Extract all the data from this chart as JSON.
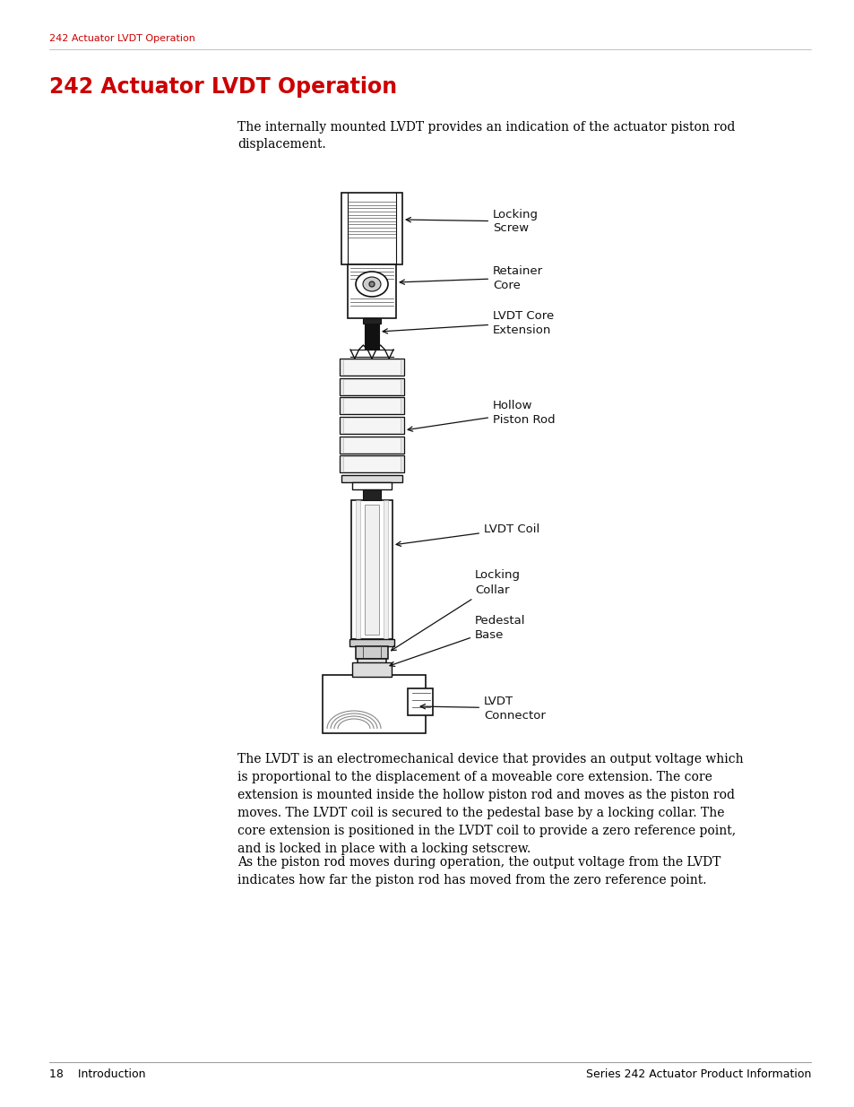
{
  "page_header": "242 Actuator LVDT Operation",
  "header_color": "#cc0000",
  "header_small_fontsize": 8,
  "title": "242 Actuator LVDT Operation",
  "title_color": "#cc0000",
  "title_fontsize": 17,
  "intro_text": "The internally mounted LVDT provides an indication of the actuator piston rod\ndisplacement.",
  "body_text1": "The LVDT is an electromechanical device that provides an output voltage which\nis proportional to the displacement of a moveable core extension. The core\nextension is mounted inside the hollow piston rod and moves as the piston rod\nmoves. The LVDT coil is secured to the pedestal base by a locking collar. The\ncore extension is positioned in the LVDT coil to provide a zero reference point,\nand is locked in place with a locking setscrew.",
  "body_text2": "As the piston rod moves during operation, the output voltage from the LVDT\nindicates how far the piston rod has moved from the zero reference point.",
  "footer_left": "18    Introduction",
  "footer_right": "Series 242 Actuator Product Information",
  "footer_fontsize": 9,
  "body_fontsize": 10,
  "bg_color": "#ffffff",
  "text_color": "#000000",
  "diagram_color": "#111111"
}
